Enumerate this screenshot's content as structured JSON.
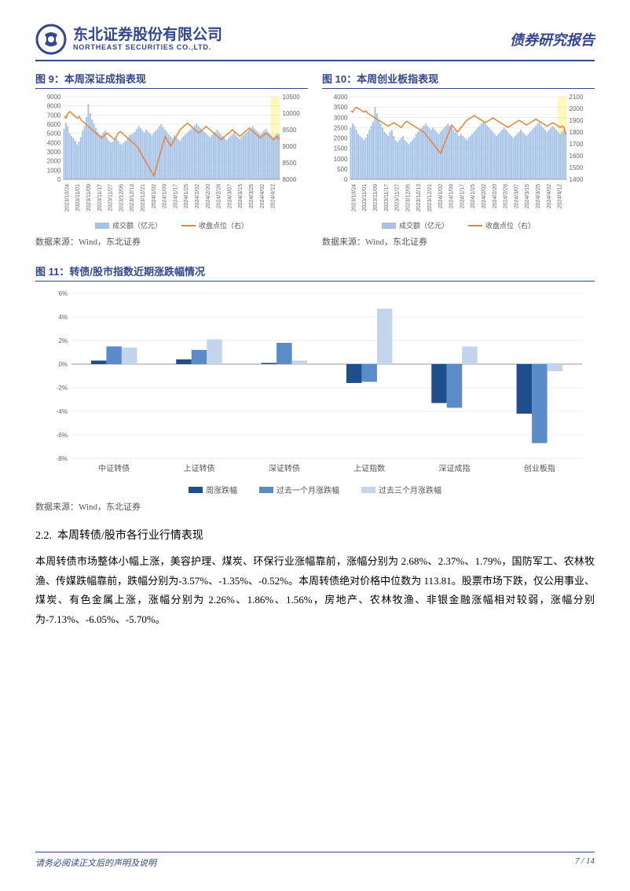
{
  "header": {
    "logo_cn": "东北证券股份有限公司",
    "logo_en": "NORTHEAST SECURITIES CO.,LTD.",
    "report_type": "债券研究报告"
  },
  "fig9": {
    "title": "图 9：本周深证成指表现",
    "left_axis": {
      "min": 0,
      "max": 9000,
      "step": 1000
    },
    "right_axis": {
      "min": 8000,
      "max": 10500,
      "step": 500
    },
    "legend_bar": "成交额（亿元）",
    "legend_line": "收盘点位（右）",
    "bar_color": "#a7c4e8",
    "line_color": "#e8833a",
    "highlight_color": "#fff27a",
    "grid_color": "#d9d9d9",
    "xlabels": [
      "2023/10/24",
      "2023/11/01",
      "2023/11/09",
      "2023/11/17",
      "2023/11/27",
      "2023/12/05",
      "2023/12/13",
      "2023/12/21",
      "2024/1/02",
      "2024/1/09",
      "2024/1/17",
      "2024/1/25",
      "2024/2/02",
      "2024/2/20",
      "2024/2/28",
      "2024/3/07",
      "2024/3/15",
      "2024/3/25",
      "2024/4/02",
      "2024/4/12"
    ],
    "bars": [
      5500,
      6200,
      5800,
      5000,
      4700,
      4500,
      4200,
      3800,
      4100,
      4600,
      5300,
      5800,
      6800,
      8200,
      7200,
      6500,
      6100,
      5600,
      5200,
      4900,
      4800,
      5100,
      5300,
      4500,
      4200,
      4000,
      4100,
      4300,
      4500,
      4200,
      3900,
      3800,
      4000,
      4200,
      4500,
      4800,
      4900,
      5000,
      5200,
      5500,
      5800,
      5600,
      5300,
      5100,
      5400,
      5200,
      5000,
      4800,
      5100,
      5300,
      5500,
      5800,
      6000,
      5700,
      5400,
      5200,
      4900,
      4700,
      4500,
      4800,
      4600,
      4400,
      4200,
      4500,
      4700,
      4900,
      5100,
      5300,
      5500,
      5700,
      5900,
      6100,
      5800,
      5600,
      5400,
      5200,
      5000,
      4800,
      4600,
      4800,
      5000,
      5200,
      5400,
      5100,
      4900,
      4700,
      4500,
      4300,
      4500,
      4700,
      4900,
      5100,
      4800,
      4600,
      4400,
      4600,
      4800,
      5000,
      5200,
      5400,
      5600,
      5800,
      5500,
      5300,
      5100,
      4900,
      5100,
      5300,
      5500,
      5200,
      5000,
      4800,
      4600,
      4800,
      5000,
      4900
    ],
    "line": [
      9900,
      9850,
      10000,
      10050,
      10000,
      9950,
      9900,
      9850,
      9900,
      9800,
      9750,
      9700,
      9650,
      9600,
      9550,
      9500,
      9450,
      9400,
      9350,
      9300,
      9250,
      9300,
      9350,
      9400,
      9350,
      9300,
      9250,
      9200,
      9300,
      9400,
      9450,
      9400,
      9350,
      9300,
      9250,
      9200,
      9150,
      9100,
      9050,
      9000,
      8900,
      8800,
      8700,
      8600,
      8500,
      8400,
      8300,
      8200,
      8100,
      8300,
      8500,
      8700,
      8900,
      9100,
      9300,
      9200,
      9100,
      9000,
      9100,
      9200,
      9300,
      9400,
      9500,
      9550,
      9600,
      9650,
      9700,
      9650,
      9600,
      9550,
      9500,
      9450,
      9400,
      9450,
      9500,
      9550,
      9600,
      9550,
      9500,
      9450,
      9400,
      9350,
      9300,
      9250,
      9200,
      9250,
      9300,
      9350,
      9400,
      9450,
      9500,
      9450,
      9400,
      9350,
      9300,
      9350,
      9400,
      9450,
      9500,
      9550,
      9500,
      9450,
      9400,
      9350,
      9300,
      9250,
      9300,
      9350,
      9400,
      9350,
      9300,
      9250,
      9200,
      9250,
      9300,
      9200
    ]
  },
  "fig10": {
    "title": "图 10：本周创业板指表现",
    "left_axis": {
      "min": 0,
      "max": 4000,
      "step": 500
    },
    "right_axis": {
      "min": 1400,
      "max": 2100,
      "step": 100
    },
    "legend_bar": "成交额（亿元）",
    "legend_line": "收盘点位（右）",
    "bar_color": "#a7c4e8",
    "line_color": "#e8833a",
    "highlight_color": "#fff27a",
    "grid_color": "#d9d9d9",
    "xlabels": [
      "2023/10/24",
      "2023/11/01",
      "2023/11/09",
      "2023/11/17",
      "2023/11/27",
      "2023/12/05",
      "2023/12/13",
      "2023/12/21",
      "2024/1/02",
      "2024/1/09",
      "2024/1/17",
      "2024/1/25",
      "2024/2/02",
      "2024/2/20",
      "2024/2/28",
      "2024/3/07",
      "2024/3/15",
      "2024/3/25",
      "2024/4/02",
      "2024/4/12"
    ],
    "bars": [
      2500,
      2700,
      2600,
      2400,
      2200,
      2100,
      2000,
      1900,
      2000,
      2200,
      2400,
      2600,
      2800,
      3500,
      3200,
      2900,
      2700,
      2500,
      2300,
      2200,
      2100,
      2300,
      2400,
      2100,
      1900,
      1800,
      1900,
      2000,
      2100,
      1900,
      1800,
      1700,
      1800,
      1900,
      2000,
      2200,
      2300,
      2400,
      2500,
      2600,
      2700,
      2600,
      2500,
      2400,
      2500,
      2400,
      2300,
      2200,
      2300,
      2400,
      2500,
      2600,
      2700,
      2600,
      2500,
      2400,
      2300,
      2200,
      2100,
      2200,
      2100,
      2000,
      1900,
      2000,
      2100,
      2200,
      2300,
      2400,
      2500,
      2600,
      2700,
      2800,
      2700,
      2600,
      2500,
      2400,
      2300,
      2200,
      2100,
      2200,
      2300,
      2400,
      2500,
      2400,
      2300,
      2200,
      2100,
      2000,
      2100,
      2200,
      2300,
      2400,
      2300,
      2200,
      2100,
      2200,
      2300,
      2400,
      2500,
      2600,
      2700,
      2800,
      2600,
      2500,
      2400,
      2300,
      2400,
      2500,
      2600,
      2500,
      2400,
      2300,
      2200,
      2300,
      2400,
      2300
    ],
    "line": [
      1980,
      1970,
      2000,
      2010,
      2000,
      1990,
      1980,
      1970,
      1980,
      1960,
      1950,
      1940,
      1930,
      1920,
      1910,
      1900,
      1890,
      1880,
      1870,
      1860,
      1850,
      1860,
      1870,
      1880,
      1870,
      1860,
      1850,
      1840,
      1860,
      1880,
      1890,
      1880,
      1870,
      1860,
      1850,
      1840,
      1830,
      1820,
      1810,
      1800,
      1780,
      1760,
      1740,
      1720,
      1700,
      1680,
      1660,
      1640,
      1620,
      1660,
      1700,
      1740,
      1780,
      1820,
      1860,
      1840,
      1820,
      1800,
      1820,
      1840,
      1860,
      1880,
      1900,
      1910,
      1920,
      1930,
      1940,
      1930,
      1920,
      1910,
      1900,
      1890,
      1880,
      1890,
      1900,
      1910,
      1920,
      1910,
      1900,
      1890,
      1880,
      1870,
      1860,
      1850,
      1840,
      1850,
      1860,
      1870,
      1880,
      1890,
      1900,
      1890,
      1880,
      1870,
      1860,
      1870,
      1880,
      1890,
      1900,
      1910,
      1900,
      1890,
      1880,
      1870,
      1860,
      1850,
      1860,
      1870,
      1880,
      1870,
      1860,
      1850,
      1840,
      1850,
      1840,
      1780
    ]
  },
  "source": "数据来源：Wind，东北证券",
  "fig11": {
    "title": "图 11：转债/股市指数近期涨跌幅情况",
    "y_axis": {
      "min": -8,
      "max": 6,
      "step": 2
    },
    "categories": [
      "中证转债",
      "上证转债",
      "深证转债",
      "上证指数",
      "深证成指",
      "创业板指"
    ],
    "series": [
      {
        "name": "周涨跌幅",
        "color": "#1f4e8c",
        "values": [
          0.3,
          0.4,
          0.1,
          -1.6,
          -3.3,
          -4.2
        ]
      },
      {
        "name": "过去一个月涨跌幅",
        "color": "#5b8bc9",
        "values": [
          1.5,
          1.2,
          1.8,
          -1.5,
          -3.7,
          -6.7
        ]
      },
      {
        "name": "过去三个月涨跌幅",
        "color": "#c3d5ec",
        "values": [
          1.4,
          2.1,
          0.3,
          4.7,
          1.5,
          -0.6
        ]
      }
    ],
    "grid_color": "#d9d9d9"
  },
  "section": {
    "num": "2.2.",
    "title": "本周转债/股市各行业行情表现"
  },
  "body": "本周转债市场整体小幅上涨，美容护理、煤炭、环保行业涨幅靠前，涨幅分别为 2.68%、2.37%、1.79%，国防军工、农林牧渔、传媒跌幅靠前，跌幅分别为-3.57%、-1.35%、-0.52%。本周转债绝对价格中位数为 113.81。股票市场下跌，仅公用事业、煤炭、有色金属上涨，涨幅分别为 2.26%、1.86%、1.56%，房地产、农林牧渔、非银金融涨幅相对较弱，涨幅分别为-7.13%、-6.05%、-5.70%。",
  "footer": {
    "left": "请务必阅读正文后的声明及说明",
    "right": "7 / 14"
  }
}
